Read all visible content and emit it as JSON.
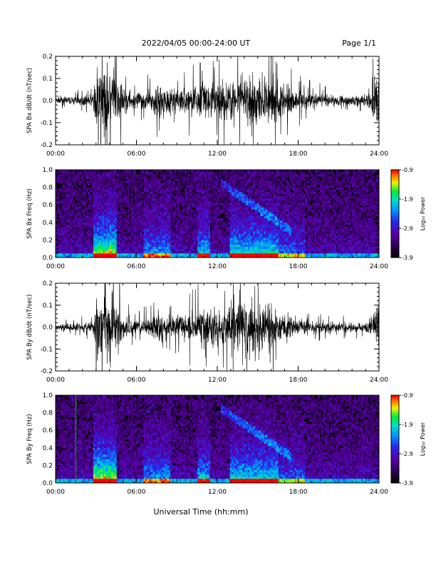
{
  "header": {
    "title": "2022/04/05  00:00-24:00 UT",
    "page": "Page 1/1"
  },
  "xlabel": "Universal Time (hh:mm)",
  "time_ticks": [
    "00:00",
    "06:00",
    "12:00",
    "18:00",
    "24:00"
  ],
  "chart_data": [
    {
      "type": "line",
      "panel": "bx",
      "ylabel": "SPA Bx dB/dt (nT/sec)",
      "ylim": [
        -0.2,
        0.2
      ],
      "yticks": [
        "-0.2",
        "-0.1",
        "0.0",
        "0.1",
        "0.2"
      ],
      "xlim": [
        0,
        24
      ],
      "envelope": {
        "x": [
          0,
          1,
          2,
          2.8,
          3.0,
          3.5,
          4.0,
          4.6,
          5.0,
          6.0,
          7.0,
          7.7,
          8.5,
          10,
          11,
          12,
          13,
          14,
          15,
          16,
          17,
          18,
          19,
          20,
          21,
          22,
          23,
          23.8,
          24
        ],
        "amplitude": [
          0.03,
          0.03,
          0.035,
          0.05,
          0.25,
          0.25,
          0.25,
          0.25,
          0.1,
          0.06,
          0.09,
          0.14,
          0.1,
          0.12,
          0.15,
          0.13,
          0.17,
          0.2,
          0.2,
          0.2,
          0.13,
          0.08,
          0.06,
          0.05,
          0.04,
          0.04,
          0.045,
          0.2,
          0.2
        ]
      }
    },
    {
      "type": "heatmap",
      "panel": "bx-spectrogram",
      "ylabel": "SPA Bx Freq (Hz)",
      "ylim": [
        0.0,
        1.0
      ],
      "yticks": [
        "0.0",
        "0.2",
        "0.4",
        "0.6",
        "0.8",
        "1.0"
      ],
      "xlim": [
        0,
        24
      ],
      "colorbar": {
        "label": "Log₁₀ Power",
        "ticks": [
          "-0.9",
          "-1.9",
          "-2.9",
          "-3.9"
        ],
        "range": [
          -3.9,
          -0.9
        ]
      }
    },
    {
      "type": "line",
      "panel": "by",
      "ylabel": "SPA By dB/dt (nT/sec)",
      "ylim": [
        -0.2,
        0.2
      ],
      "yticks": [
        "-0.2",
        "-0.1",
        "0.0",
        "0.1",
        "0.2"
      ],
      "xlim": [
        0,
        24
      ],
      "envelope": {
        "x": [
          0,
          1,
          2,
          2.8,
          3.0,
          3.5,
          4.0,
          4.6,
          5.0,
          6.0,
          7.0,
          7.7,
          8.5,
          10,
          11,
          12,
          13,
          14,
          15,
          16,
          17,
          18,
          19,
          20,
          21,
          22,
          23,
          23.8,
          24
        ],
        "amplitude": [
          0.03,
          0.03,
          0.035,
          0.05,
          0.25,
          0.25,
          0.25,
          0.25,
          0.1,
          0.05,
          0.08,
          0.14,
          0.08,
          0.12,
          0.15,
          0.13,
          0.2,
          0.22,
          0.2,
          0.18,
          0.12,
          0.07,
          0.05,
          0.04,
          0.035,
          0.035,
          0.04,
          0.15,
          0.2
        ]
      }
    },
    {
      "type": "heatmap",
      "panel": "by-spectrogram",
      "ylabel": "SPA By Freq (Hz)",
      "ylim": [
        0.0,
        1.0
      ],
      "yticks": [
        "0.0",
        "0.2",
        "0.4",
        "0.6",
        "0.8",
        "1.0"
      ],
      "xlim": [
        0,
        24
      ],
      "colorbar": {
        "label": "Log₁₀ Power",
        "ticks": [
          "-0.9",
          "-1.9",
          "-2.9",
          "-3.9"
        ],
        "range": [
          -3.9,
          -0.9
        ]
      }
    }
  ]
}
